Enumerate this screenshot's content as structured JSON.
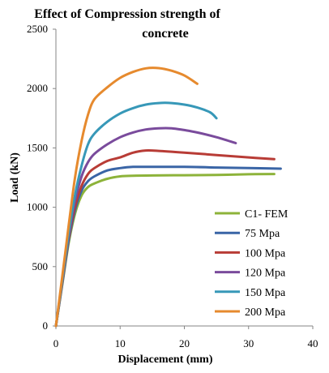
{
  "chart_data": {
    "type": "line",
    "title_lines": [
      "Effect of Compression strength of",
      "concrete"
    ],
    "xlabel": "Displacement (mm)",
    "ylabel": "Load (kN)",
    "xlim": [
      0,
      40
    ],
    "ylim": [
      0,
      2500
    ],
    "xticks": [
      "0",
      "10",
      "20",
      "30",
      "40"
    ],
    "yticks": [
      "0",
      "500",
      "1000",
      "1500",
      "2000",
      "2500"
    ],
    "grid": false,
    "legend_position": "bottom-right",
    "series": [
      {
        "name": "C1- FEM",
        "color": "#8DB33A",
        "points": [
          [
            0,
            0
          ],
          [
            1,
            350
          ],
          [
            2,
            700
          ],
          [
            3,
            950
          ],
          [
            4,
            1100
          ],
          [
            5,
            1170
          ],
          [
            6,
            1200
          ],
          [
            8,
            1240
          ],
          [
            10,
            1260
          ],
          [
            12,
            1265
          ],
          [
            15,
            1268
          ],
          [
            20,
            1270
          ],
          [
            25,
            1272
          ],
          [
            30,
            1278
          ],
          [
            34,
            1280
          ]
        ]
      },
      {
        "name": "75 Mpa",
        "color": "#3A65A6",
        "points": [
          [
            0,
            0
          ],
          [
            1,
            360
          ],
          [
            2,
            720
          ],
          [
            3,
            980
          ],
          [
            4,
            1140
          ],
          [
            5,
            1220
          ],
          [
            6,
            1260
          ],
          [
            8,
            1310
          ],
          [
            10,
            1330
          ],
          [
            12,
            1340
          ],
          [
            15,
            1340
          ],
          [
            20,
            1340
          ],
          [
            25,
            1335
          ],
          [
            30,
            1330
          ],
          [
            35,
            1325
          ]
        ]
      },
      {
        "name": "100  Mpa",
        "color": "#B83C36",
        "points": [
          [
            0,
            0
          ],
          [
            1,
            370
          ],
          [
            2,
            740
          ],
          [
            3,
            1010
          ],
          [
            4,
            1180
          ],
          [
            5,
            1280
          ],
          [
            6,
            1330
          ],
          [
            8,
            1390
          ],
          [
            10,
            1420
          ],
          [
            12,
            1460
          ],
          [
            14,
            1478
          ],
          [
            16,
            1475
          ],
          [
            20,
            1460
          ],
          [
            25,
            1440
          ],
          [
            30,
            1420
          ],
          [
            34,
            1405
          ]
        ]
      },
      {
        "name": "120  Mpa",
        "color": "#7A4B9C",
        "points": [
          [
            0,
            0
          ],
          [
            1,
            380
          ],
          [
            2,
            760
          ],
          [
            3,
            1060
          ],
          [
            4,
            1260
          ],
          [
            5,
            1380
          ],
          [
            6,
            1450
          ],
          [
            8,
            1530
          ],
          [
            10,
            1590
          ],
          [
            12,
            1630
          ],
          [
            14,
            1655
          ],
          [
            16,
            1665
          ],
          [
            18,
            1665
          ],
          [
            20,
            1650
          ],
          [
            22,
            1630
          ],
          [
            25,
            1590
          ],
          [
            28,
            1540
          ]
        ]
      },
      {
        "name": "150  Mpa",
        "color": "#3798B8",
        "points": [
          [
            0,
            0
          ],
          [
            1,
            390
          ],
          [
            2,
            780
          ],
          [
            3,
            1110
          ],
          [
            4,
            1350
          ],
          [
            5,
            1530
          ],
          [
            6,
            1620
          ],
          [
            8,
            1720
          ],
          [
            10,
            1790
          ],
          [
            12,
            1835
          ],
          [
            14,
            1865
          ],
          [
            16,
            1878
          ],
          [
            18,
            1878
          ],
          [
            20,
            1865
          ],
          [
            22,
            1840
          ],
          [
            24,
            1800
          ],
          [
            25,
            1750
          ]
        ]
      },
      {
        "name": "200  Mpa",
        "color": "#E68A2E",
        "points": [
          [
            0,
            0
          ],
          [
            1,
            420
          ],
          [
            2,
            850
          ],
          [
            3,
            1260
          ],
          [
            4,
            1560
          ],
          [
            5,
            1780
          ],
          [
            6,
            1910
          ],
          [
            8,
            2010
          ],
          [
            10,
            2090
          ],
          [
            12,
            2140
          ],
          [
            14,
            2170
          ],
          [
            16,
            2172
          ],
          [
            18,
            2150
          ],
          [
            20,
            2110
          ],
          [
            22,
            2040
          ]
        ]
      }
    ]
  }
}
